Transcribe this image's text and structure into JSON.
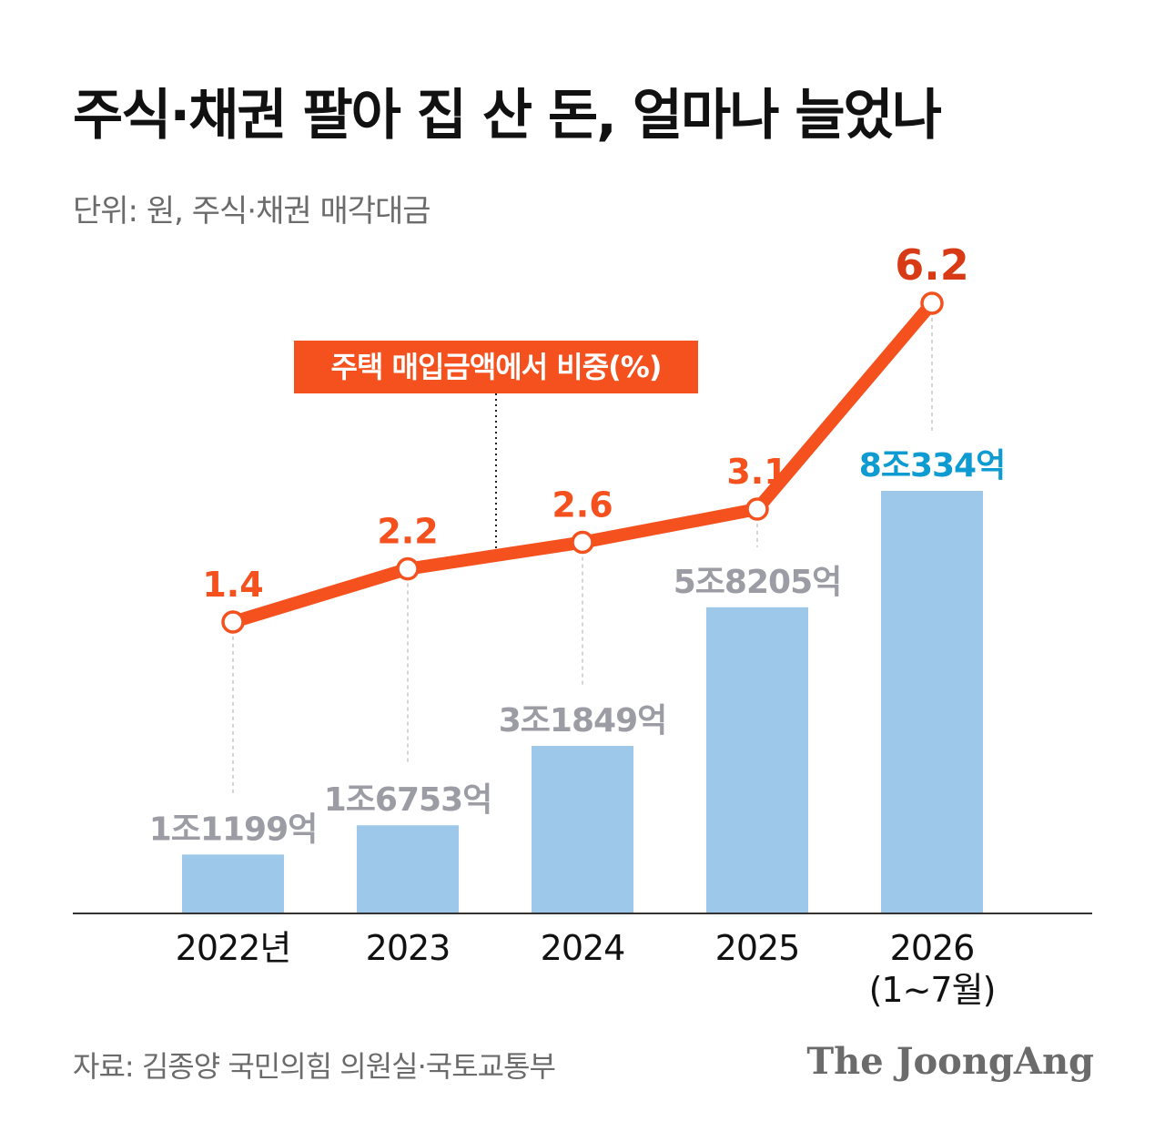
{
  "header": {
    "title": "주식·채권 팔아 집 산 돈, 얼마나 늘었나",
    "unit": "단위: 원, 주식·채권 매각대금"
  },
  "footer": {
    "source": "자료: 김종양 국민의힘 의원실·국토교통부",
    "logo": "The JoongAng"
  },
  "colors": {
    "bar": "#9dc8ea",
    "line": "#f4511e",
    "label_gray": "#9c9ca4",
    "label_highlight": "#0e9bd2",
    "line_label_last": "#d73a14",
    "axis": "#333333"
  },
  "chart_data": {
    "type": "bar",
    "categories": [
      "2022년",
      "2023",
      "2024",
      "2025",
      "2026\n(1~7월)"
    ],
    "series": [
      {
        "values": [
          11199,
          16753,
          31849,
          58205,
          80334
        ],
        "value_labels": [
          "1조1199억",
          "1조6753억",
          "3조1849억",
          "5조8205억",
          "8조334억"
        ]
      },
      {
        "name": "주택 매입금액에서 비중(%)",
        "type": "line",
        "values": [
          1.4,
          2.2,
          2.6,
          3.1,
          6.2
        ],
        "value_labels": [
          "1.4",
          "2.2",
          "2.6",
          "3.1",
          "6.2"
        ]
      }
    ]
  }
}
